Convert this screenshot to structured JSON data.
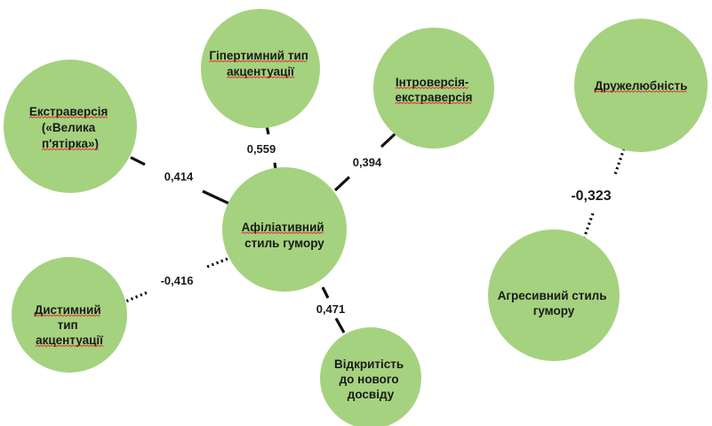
{
  "nodes": {
    "affiliative": {
      "lines": [
        "Афіліативний",
        "стиль гумору"
      ],
      "spellcheck": [
        0
      ]
    },
    "hyperthymic": {
      "lines": [
        "Гіпертимний тип",
        "акцентуації"
      ],
      "spellcheck": [
        0,
        1
      ]
    },
    "introversion": {
      "lines": [
        "Інтроверсія-",
        "екстраверсія"
      ],
      "spellcheck": [
        0,
        1
      ]
    },
    "extraversion": {
      "lines": [
        "Екстраверсія",
        "(«Велика",
        "п'ятірка»)"
      ],
      "spellcheck": [
        0,
        2
      ]
    },
    "dysthymic": {
      "lines": [
        "Дистимний",
        "тип",
        "акцентуації"
      ],
      "spellcheck": [
        0,
        2
      ]
    },
    "openness": {
      "lines": [
        "Відкритість",
        "до нового",
        "досвіду"
      ],
      "spellcheck": []
    },
    "friendliness": {
      "lines": [
        "Дружелюбність"
      ],
      "spellcheck": [
        0
      ]
    },
    "aggressive": {
      "lines": [
        "Агресивний стиль",
        "гумору"
      ],
      "spellcheck": []
    }
  },
  "edges": {
    "extraversion_affiliative": {
      "value": "0,414",
      "style": "solid"
    },
    "hyperthymic_affiliative": {
      "value": "0,559",
      "style": "solid"
    },
    "introversion_affiliative": {
      "value": "0,394",
      "style": "solid"
    },
    "dysthymic_affiliative": {
      "value": "-0,416",
      "style": "dotted"
    },
    "openness_affiliative": {
      "value": "0,471",
      "style": "solid"
    },
    "friendliness_aggressive": {
      "value": "-0,323",
      "style": "dotted"
    }
  },
  "colors": {
    "node_fill": "#a5d27f",
    "edge": "#111111",
    "spellcheck_underline": "#e0322f"
  }
}
